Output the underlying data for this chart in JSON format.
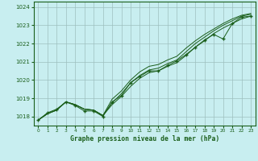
{
  "title": "Graphe pression niveau de la mer (hPa)",
  "background_color": "#c8eef0",
  "grid_color": "#9dbfbf",
  "line_color": "#1a5e1a",
  "xlim": [
    -0.5,
    23.5
  ],
  "ylim": [
    1017.5,
    1024.3
  ],
  "yticks": [
    1018,
    1019,
    1020,
    1021,
    1022,
    1023,
    1024
  ],
  "xticks": [
    0,
    1,
    2,
    3,
    4,
    5,
    6,
    7,
    8,
    9,
    10,
    11,
    12,
    13,
    14,
    15,
    16,
    17,
    18,
    19,
    20,
    21,
    22,
    23
  ],
  "hours": [
    0,
    1,
    2,
    3,
    4,
    5,
    6,
    7,
    8,
    9,
    10,
    11,
    12,
    13,
    14,
    15,
    16,
    17,
    18,
    19,
    20,
    21,
    22,
    23
  ],
  "series_smooth1": [
    1017.8,
    1018.15,
    1018.35,
    1018.8,
    1018.65,
    1018.4,
    1018.35,
    1018.05,
    1018.65,
    1019.1,
    1019.65,
    1020.1,
    1020.4,
    1020.5,
    1020.75,
    1020.95,
    1021.35,
    1021.8,
    1022.15,
    1022.55,
    1022.85,
    1023.1,
    1023.35,
    1023.5
  ],
  "series_smooth2": [
    1017.8,
    1018.15,
    1018.35,
    1018.8,
    1018.65,
    1018.4,
    1018.35,
    1018.05,
    1018.75,
    1019.25,
    1019.85,
    1020.25,
    1020.55,
    1020.65,
    1020.9,
    1021.1,
    1021.55,
    1022.0,
    1022.35,
    1022.7,
    1023.0,
    1023.25,
    1023.5,
    1023.6
  ],
  "series_smooth3": [
    1017.8,
    1018.15,
    1018.35,
    1018.8,
    1018.65,
    1018.4,
    1018.35,
    1018.05,
    1018.95,
    1019.4,
    1020.0,
    1020.45,
    1020.75,
    1020.85,
    1021.1,
    1021.3,
    1021.75,
    1022.15,
    1022.5,
    1022.8,
    1023.1,
    1023.35,
    1023.55,
    1023.65
  ],
  "series_marker": [
    1017.8,
    1018.2,
    1018.4,
    1018.8,
    1018.6,
    1018.3,
    1018.3,
    1018.0,
    1018.8,
    1019.15,
    1019.85,
    1020.2,
    1020.5,
    1020.5,
    1020.8,
    1021.05,
    1021.4,
    1021.8,
    1022.2,
    1022.5,
    1022.25,
    1023.1,
    1023.45,
    1023.5
  ]
}
